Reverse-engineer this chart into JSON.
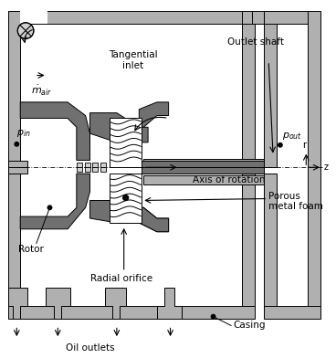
{
  "figsize": [
    3.68,
    3.92
  ],
  "dpi": 100,
  "bg_color": "#ffffff",
  "light_grey": "#b0b0b0",
  "dark_grey": "#707070",
  "line_color": "#000000",
  "labels": {
    "tangential_inlet": "Tangential\ninlet",
    "m_air": "$\\dot{m}_{air}$",
    "p_in": "$p_{in}$",
    "outlet_shaft": "Outlet shaft",
    "p_out": "$p_{out}$",
    "axis_of_rotation": "Axis of rotation",
    "r_label": "r",
    "z_label": "z",
    "porous_metal_foam": "Porous\nmetal foam",
    "rotor": "Rotor",
    "radial_orifice": "Radial orifice",
    "casing": "Casing",
    "oil_outlets": "Oil outlets"
  }
}
